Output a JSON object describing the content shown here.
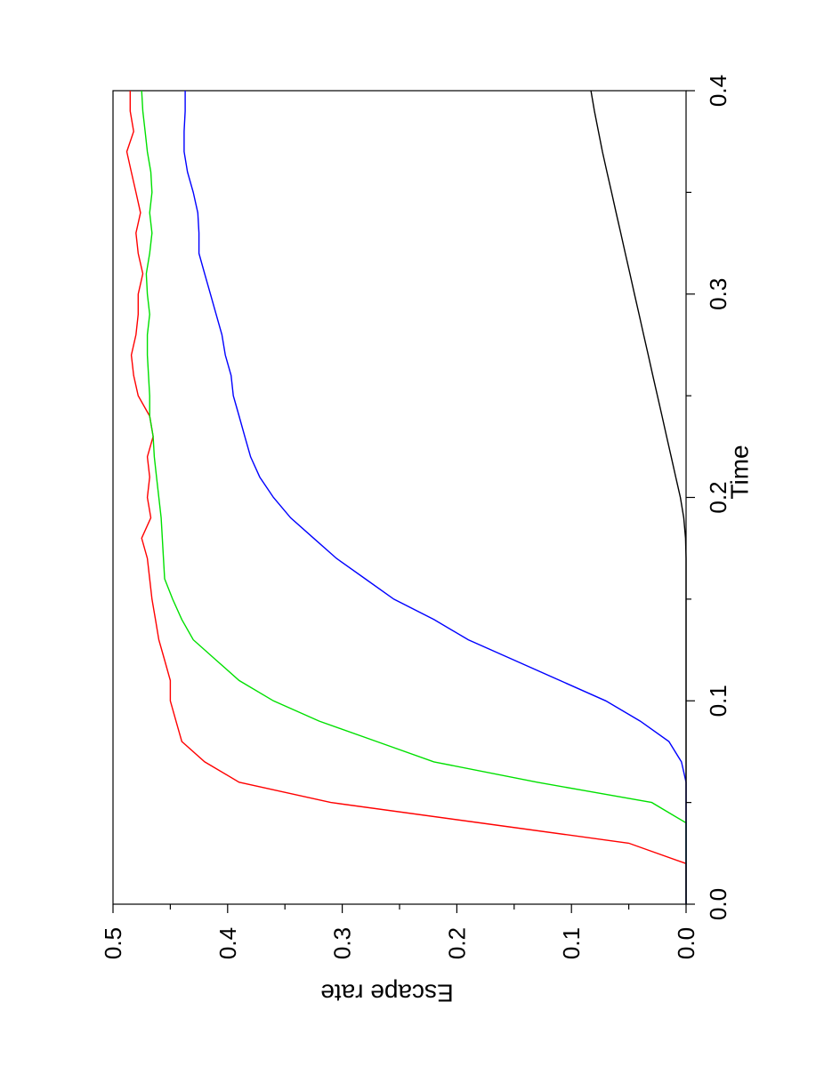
{
  "chart_data": {
    "type": "line",
    "title": "",
    "xlabel": "Time",
    "ylabel": "Escape rate",
    "xlim": [
      0.0,
      0.4
    ],
    "ylim": [
      0.0,
      0.5
    ],
    "x_ticks": [
      0.0,
      0.1,
      0.2,
      0.3,
      0.4
    ],
    "y_ticks": [
      0.0,
      0.1,
      0.2,
      0.3,
      0.4,
      0.5
    ],
    "x_tick_labels": [
      "0.0",
      "0.1",
      "0.2",
      "0.3",
      "0.4"
    ],
    "y_tick_labels": [
      "0.0",
      "0.1",
      "0.2",
      "0.3",
      "0.4",
      "0.5"
    ],
    "orientation": "rotated-90",
    "grid": false,
    "legend": "none",
    "series": [
      {
        "color": "#ff0000",
        "x": [
          0.0,
          0.02,
          0.03,
          0.04,
          0.05,
          0.06,
          0.07,
          0.08,
          0.09,
          0.1,
          0.11,
          0.12,
          0.13,
          0.14,
          0.15,
          0.16,
          0.17,
          0.18,
          0.19,
          0.2,
          0.21,
          0.22,
          0.23,
          0.24,
          0.25,
          0.26,
          0.27,
          0.28,
          0.29,
          0.3,
          0.31,
          0.32,
          0.33,
          0.34,
          0.35,
          0.36,
          0.37,
          0.38,
          0.39,
          0.4
        ],
        "y": [
          0.0,
          0.0,
          0.05,
          0.18,
          0.31,
          0.39,
          0.42,
          0.44,
          0.445,
          0.45,
          0.45,
          0.455,
          0.46,
          0.463,
          0.466,
          0.468,
          0.47,
          0.475,
          0.467,
          0.47,
          0.468,
          0.47,
          0.465,
          0.468,
          0.478,
          0.482,
          0.484,
          0.48,
          0.478,
          0.478,
          0.474,
          0.478,
          0.48,
          0.476,
          0.48,
          0.484,
          0.488,
          0.482,
          0.485,
          0.485
        ]
      },
      {
        "color": "#00e000",
        "x": [
          0.0,
          0.04,
          0.05,
          0.06,
          0.07,
          0.08,
          0.09,
          0.1,
          0.11,
          0.12,
          0.13,
          0.14,
          0.15,
          0.16,
          0.17,
          0.18,
          0.19,
          0.2,
          0.21,
          0.22,
          0.23,
          0.24,
          0.25,
          0.26,
          0.27,
          0.28,
          0.29,
          0.3,
          0.31,
          0.32,
          0.33,
          0.34,
          0.35,
          0.36,
          0.37,
          0.38,
          0.39,
          0.4
        ],
        "y": [
          0.0,
          0.0,
          0.03,
          0.13,
          0.22,
          0.27,
          0.32,
          0.36,
          0.39,
          0.41,
          0.43,
          0.44,
          0.448,
          0.455,
          0.456,
          0.457,
          0.458,
          0.46,
          0.462,
          0.464,
          0.465,
          0.468,
          0.468,
          0.469,
          0.47,
          0.47,
          0.468,
          0.47,
          0.471,
          0.468,
          0.466,
          0.468,
          0.466,
          0.467,
          0.47,
          0.472,
          0.474,
          0.475
        ]
      },
      {
        "color": "#0000ff",
        "x": [
          0.0,
          0.06,
          0.07,
          0.08,
          0.09,
          0.1,
          0.11,
          0.12,
          0.13,
          0.14,
          0.15,
          0.16,
          0.17,
          0.18,
          0.19,
          0.2,
          0.21,
          0.22,
          0.23,
          0.24,
          0.25,
          0.26,
          0.27,
          0.28,
          0.29,
          0.3,
          0.31,
          0.32,
          0.33,
          0.34,
          0.35,
          0.36,
          0.37,
          0.38,
          0.39,
          0.4
        ],
        "y": [
          0.0,
          0.0,
          0.004,
          0.015,
          0.04,
          0.07,
          0.11,
          0.15,
          0.19,
          0.22,
          0.255,
          0.28,
          0.305,
          0.325,
          0.345,
          0.36,
          0.372,
          0.38,
          0.385,
          0.39,
          0.395,
          0.397,
          0.402,
          0.405,
          0.41,
          0.415,
          0.42,
          0.425,
          0.425,
          0.426,
          0.43,
          0.435,
          0.438,
          0.438,
          0.437,
          0.437
        ]
      },
      {
        "color": "#000000",
        "x": [
          0.0,
          0.17,
          0.18,
          0.19,
          0.2,
          0.21,
          0.22,
          0.23,
          0.24,
          0.25,
          0.26,
          0.27,
          0.28,
          0.29,
          0.3,
          0.31,
          0.32,
          0.33,
          0.34,
          0.35,
          0.36,
          0.37,
          0.38,
          0.39,
          0.4
        ],
        "y": [
          0.0,
          0.0,
          0.0005,
          0.002,
          0.005,
          0.009,
          0.013,
          0.017,
          0.021,
          0.025,
          0.029,
          0.033,
          0.037,
          0.041,
          0.045,
          0.049,
          0.053,
          0.057,
          0.061,
          0.065,
          0.069,
          0.073,
          0.0765,
          0.08,
          0.083
        ]
      }
    ]
  }
}
